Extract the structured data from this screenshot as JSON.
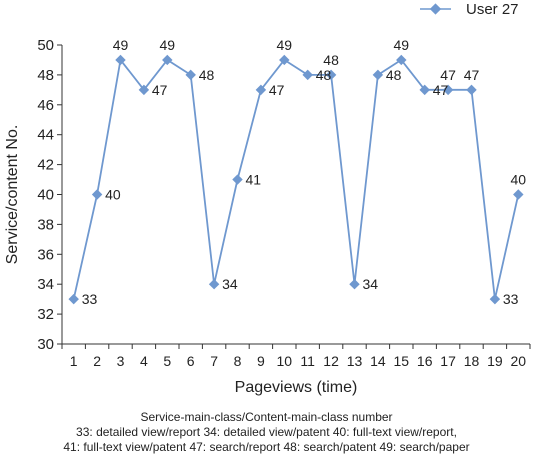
{
  "chart_data": {
    "type": "line",
    "x": [
      1,
      2,
      3,
      4,
      5,
      6,
      7,
      8,
      9,
      10,
      11,
      12,
      13,
      14,
      15,
      16,
      17,
      18,
      19,
      20
    ],
    "series": [
      {
        "name": "User 27",
        "color": "#6f98cf",
        "values": [
          33,
          40,
          49,
          47,
          49,
          48,
          34,
          41,
          47,
          49,
          48,
          48,
          34,
          48,
          49,
          47,
          47,
          47,
          33,
          40
        ]
      }
    ],
    "data_labels": [
      "33",
      "40",
      "49",
      "47",
      "49",
      "48",
      "34",
      "41",
      "47",
      "49",
      "48",
      "48",
      "34",
      "48",
      "49",
      "47",
      "47",
      "47",
      "33",
      "40"
    ],
    "xlabel": "Pageviews (time)",
    "ylabel": "Service/content No.",
    "xlim": [
      0.5,
      20.5
    ],
    "ylim": [
      30,
      50
    ],
    "y_ticks": [
      "30",
      "32",
      "34",
      "36",
      "38",
      "40",
      "42",
      "44",
      "46",
      "48",
      "50"
    ],
    "x_ticks": [
      "1",
      "2",
      "3",
      "4",
      "5",
      "6",
      "7",
      "8",
      "9",
      "10",
      "11",
      "12",
      "13",
      "14",
      "15",
      "16",
      "17",
      "18",
      "19",
      "20"
    ],
    "grid": false,
    "legend_position": "top-right",
    "marker": "diamond"
  },
  "caption": {
    "title": "Service-main-class/Content-main-class number",
    "line1": "33: detailed view/report  34: detailed view/patent  40: full-text view/report,",
    "line2": "41: full-text view/patent  47: search/report  48: search/patent  49: search/paper"
  }
}
